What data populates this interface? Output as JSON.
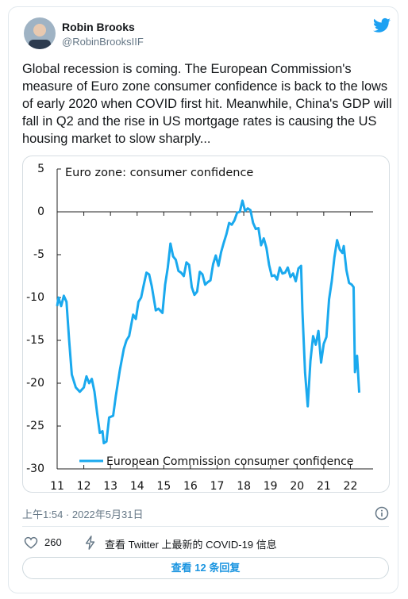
{
  "tweet": {
    "author": {
      "name": "Robin Brooks",
      "handle": "@RobinBrooksIIF"
    },
    "text": "Global recession is coming. The European Commission's measure of Euro zone consumer confidence is back to the lows of early 2020 when COVID first hit. Meanwhile, China's GDP will fall in Q2 and the rise in US mortgage rates is causing the US housing market to slow sharply...",
    "timestamp": "上午1:54 · 2022年5月31日",
    "likes": 260,
    "covid_notice": "查看 Twitter 上最新的 COVID-19 信息",
    "replies_button": "查看 12 条回复"
  },
  "chart_data": {
    "type": "line",
    "title": "Euro zone: consumer confidence",
    "x": [
      2011.0,
      2011.05,
      2011.15,
      2011.25,
      2011.35,
      2011.45,
      2011.55,
      2011.7,
      2011.85,
      2012.0,
      2012.1,
      2012.2,
      2012.3,
      2012.4,
      2012.5,
      2012.6,
      2012.7,
      2012.75,
      2012.85,
      2012.95,
      2013.1,
      2013.2,
      2013.35,
      2013.5,
      2013.6,
      2013.7,
      2013.85,
      2013.95,
      2014.05,
      2014.15,
      2014.25,
      2014.35,
      2014.45,
      2014.55,
      2014.7,
      2014.8,
      2014.95,
      2015.05,
      2015.15,
      2015.25,
      2015.35,
      2015.45,
      2015.55,
      2015.65,
      2015.75,
      2015.85,
      2015.95,
      2016.05,
      2016.15,
      2016.25,
      2016.35,
      2016.45,
      2016.55,
      2016.65,
      2016.75,
      2016.85,
      2016.95,
      2017.05,
      2017.15,
      2017.25,
      2017.35,
      2017.45,
      2017.55,
      2017.65,
      2017.75,
      2017.85,
      2017.95,
      2018.05,
      2018.15,
      2018.25,
      2018.35,
      2018.45,
      2018.55,
      2018.65,
      2018.75,
      2018.85,
      2018.95,
      2019.05,
      2019.15,
      2019.25,
      2019.35,
      2019.45,
      2019.55,
      2019.65,
      2019.75,
      2019.85,
      2019.95,
      2020.05,
      2020.15,
      2020.2,
      2020.3,
      2020.4,
      2020.5,
      2020.6,
      2020.7,
      2020.8,
      2020.9,
      2021.0,
      2021.1,
      2021.2,
      2021.3,
      2021.4,
      2021.5,
      2021.6,
      2021.7,
      2021.75,
      2021.85,
      2021.95,
      2022.05,
      2022.12,
      2022.17,
      2022.25,
      2022.33
    ],
    "series": [
      {
        "name": "European Commission consumer confidence",
        "color": "#1aa9ee",
        "values": [
          -11,
          -10,
          -11,
          -9.8,
          -10.5,
          -15,
          -19,
          -20.5,
          -21,
          -20.5,
          -19.2,
          -20,
          -19.5,
          -21,
          -23.5,
          -25.8,
          -25.6,
          -27,
          -26.8,
          -24,
          -23.8,
          -21.5,
          -18.5,
          -16,
          -15,
          -14.5,
          -12,
          -12.5,
          -10.5,
          -10,
          -8.5,
          -7.1,
          -7.3,
          -8.7,
          -11.5,
          -11.3,
          -11.8,
          -8.5,
          -6.5,
          -3.7,
          -5.2,
          -5.6,
          -6.9,
          -7.1,
          -7.5,
          -5.9,
          -6.2,
          -8.8,
          -9.7,
          -9.3,
          -7.0,
          -7.3,
          -8.5,
          -8.2,
          -8.0,
          -6.1,
          -5.1,
          -6.3,
          -4.7,
          -3.6,
          -2.6,
          -1.3,
          -1.5,
          -1.0,
          -0.1,
          0.0,
          1.3,
          0.1,
          0.4,
          0.2,
          -1.3,
          -2.0,
          -1.9,
          -3.9,
          -3.1,
          -4.2,
          -6.2,
          -7.5,
          -7.4,
          -7.9,
          -6.5,
          -7.2,
          -7.1,
          -6.5,
          -7.6,
          -7.2,
          -8.1,
          -6.6,
          -6.3,
          -11.6,
          -18.8,
          -22.7,
          -17.4,
          -14.5,
          -15.5,
          -13.9,
          -17.6,
          -15.4,
          -14.6,
          -10.2,
          -8.1,
          -5.3,
          -3.3,
          -4.4,
          -4.8,
          -4.0,
          -6.8,
          -8.3,
          -8.5,
          -8.8,
          -18.7,
          -16.8,
          -21.1
        ]
      }
    ],
    "xlim": [
      2011,
      2022.85
    ],
    "xticks": [
      {
        "value": 2011,
        "label": "11"
      },
      {
        "value": 2012,
        "label": "12"
      },
      {
        "value": 2013,
        "label": "13"
      },
      {
        "value": 2014,
        "label": "14"
      },
      {
        "value": 2015,
        "label": "15"
      },
      {
        "value": 2016,
        "label": "16"
      },
      {
        "value": 2017,
        "label": "17"
      },
      {
        "value": 2018,
        "label": "18"
      },
      {
        "value": 2019,
        "label": "19"
      },
      {
        "value": 2020,
        "label": "20"
      },
      {
        "value": 2021,
        "label": "21"
      },
      {
        "value": 2022,
        "label": "22"
      }
    ],
    "ylim": [
      -30,
      5
    ],
    "yticks": [
      5,
      0,
      -5,
      -10,
      -15,
      -20,
      -25,
      -30
    ]
  }
}
